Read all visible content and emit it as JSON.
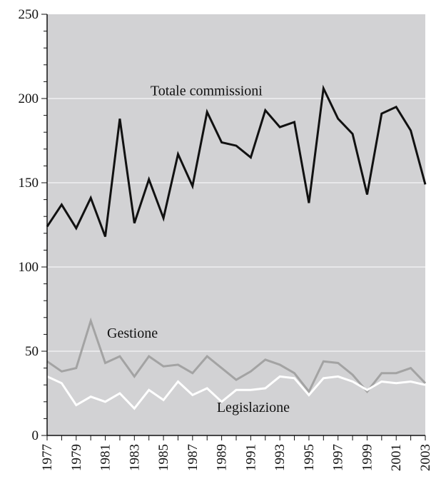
{
  "chart_data": {
    "type": "line",
    "title": "",
    "xlabel": "",
    "ylabel": "",
    "ylim": [
      0,
      250
    ],
    "yticks": [
      0,
      50,
      100,
      150,
      200,
      250
    ],
    "xlim": [
      1977,
      2003
    ],
    "xticks": [
      1977,
      1979,
      1981,
      1983,
      1985,
      1987,
      1989,
      1991,
      1993,
      1995,
      1997,
      1999,
      2001,
      2003
    ],
    "grid": true,
    "colors": {
      "plot_bg": "#d2d2d4"
    },
    "x": [
      1977,
      1978,
      1979,
      1980,
      1981,
      1982,
      1983,
      1984,
      1985,
      1986,
      1987,
      1988,
      1989,
      1990,
      1991,
      1992,
      1993,
      1994,
      1995,
      1996,
      1997,
      1998,
      1999,
      2000,
      2001,
      2002,
      2003
    ],
    "series": [
      {
        "name": "Totale commissioni",
        "color": "#111111",
        "values": [
          124,
          137,
          123,
          141,
          118,
          188,
          126,
          152,
          129,
          167,
          148,
          192,
          174,
          172,
          165,
          193,
          183,
          186,
          138,
          206,
          188,
          179,
          143,
          191,
          195,
          181,
          149
        ]
      },
      {
        "name": "Gestione",
        "color": "#a3a3a3",
        "values": [
          44,
          38,
          40,
          68,
          43,
          47,
          35,
          47,
          41,
          42,
          37,
          47,
          40,
          33,
          38,
          45,
          42,
          37,
          26,
          44,
          43,
          36,
          26,
          37,
          37,
          40,
          31
        ]
      },
      {
        "name": "Legislazione",
        "color": "#ffffff",
        "values": [
          35,
          31,
          18,
          23,
          20,
          25,
          16,
          27,
          21,
          32,
          24,
          28,
          20,
          27,
          27,
          28,
          35,
          34,
          24,
          34,
          35,
          32,
          27,
          32,
          31,
          32,
          30
        ]
      }
    ]
  }
}
